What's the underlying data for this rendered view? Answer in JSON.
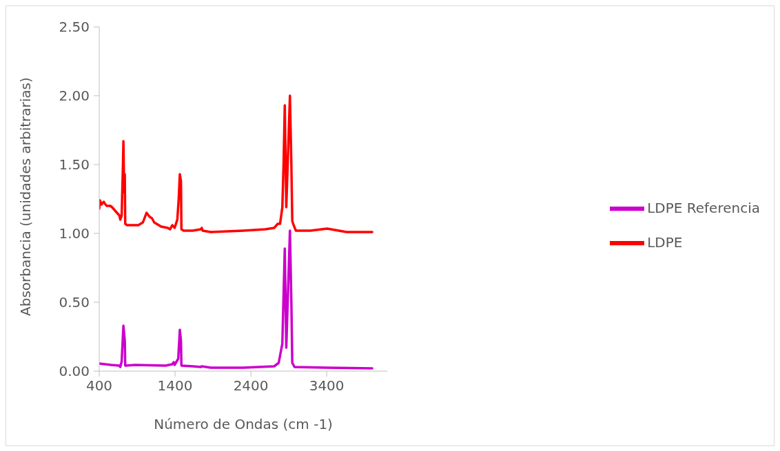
{
  "chart_data": {
    "type": "line",
    "xlabel": "Número de Ondas (cm -1)",
    "ylabel": "Absorbancia (unidades arbitrarias)",
    "xlim": [
      400,
      4200
    ],
    "xticks": [
      400,
      1400,
      2400,
      3400
    ],
    "ylim": [
      0,
      2.5
    ],
    "yticks": [
      {
        "value": 0,
        "label": "0.00"
      },
      {
        "value": 0.5,
        "label": "0.50"
      },
      {
        "value": 1,
        "label": "1.00"
      },
      {
        "value": 1.5,
        "label": "1.50"
      },
      {
        "value": 2,
        "label": "2.00"
      },
      {
        "value": 2.5,
        "label": "2.50"
      }
    ],
    "legend": "right",
    "series": [
      {
        "name": "LDPE Referencia",
        "color": "#cc00cc",
        "x": [
          400,
          558,
          666,
          678,
          696,
          719,
          737,
          743,
          875,
          1275,
          1364,
          1382,
          1394,
          1442,
          1463,
          1478,
          1484,
          1633,
          1740,
          1752,
          1872,
          2300,
          2707,
          2767,
          2815,
          2831,
          2847,
          2867,
          2915,
          2934,
          2946,
          2976,
          3400,
          4000
        ],
        "values": [
          0.055,
          0.045,
          0.04,
          0.03,
          0.07,
          0.33,
          0.22,
          0.04,
          0.045,
          0.04,
          0.05,
          0.065,
          0.045,
          0.09,
          0.3,
          0.22,
          0.04,
          0.035,
          0.03,
          0.035,
          0.025,
          0.025,
          0.035,
          0.06,
          0.2,
          0.55,
          0.89,
          0.17,
          1.02,
          0.5,
          0.06,
          0.03,
          0.025,
          0.02
        ]
      },
      {
        "name": "LDPE",
        "color": "#ff0000",
        "x": [
          400,
          410,
          430,
          460,
          469,
          498,
          546,
          570,
          618,
          666,
          678,
          696,
          713,
          719,
          730,
          737,
          743,
          767,
          857,
          916,
          946,
          976,
          1024,
          1066,
          1096,
          1125,
          1155,
          1215,
          1304,
          1334,
          1364,
          1394,
          1430,
          1448,
          1463,
          1478,
          1484,
          1513,
          1633,
          1740,
          1752,
          1764,
          1872,
          2300,
          2588,
          2707,
          2755,
          2785,
          2815,
          2831,
          2847,
          2867,
          2915,
          2934,
          2946,
          2964,
          2994,
          3185,
          3406,
          3663,
          4000
        ],
        "values": [
          1.18,
          1.24,
          1.21,
          1.23,
          1.22,
          1.2,
          1.2,
          1.19,
          1.16,
          1.13,
          1.1,
          1.13,
          1.5,
          1.67,
          1.3,
          1.43,
          1.07,
          1.06,
          1.06,
          1.06,
          1.07,
          1.08,
          1.15,
          1.12,
          1.11,
          1.08,
          1.07,
          1.05,
          1.04,
          1.03,
          1.06,
          1.04,
          1.1,
          1.25,
          1.43,
          1.38,
          1.03,
          1.02,
          1.02,
          1.03,
          1.04,
          1.02,
          1.01,
          1.02,
          1.03,
          1.04,
          1.07,
          1.07,
          1.19,
          1.5,
          1.93,
          1.19,
          2.0,
          1.5,
          1.09,
          1.06,
          1.02,
          1.02,
          1.035,
          1.01,
          1.01
        ]
      }
    ]
  }
}
